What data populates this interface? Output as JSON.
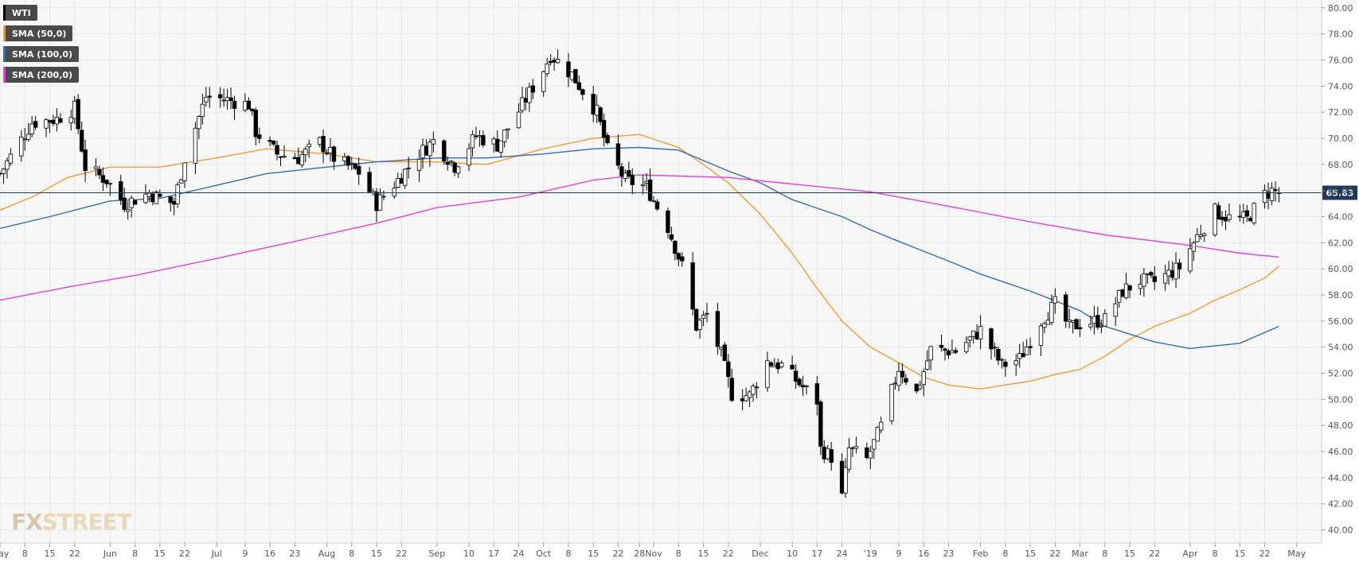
{
  "watermark": {
    "prefix": "FX",
    "suffix": "STREET"
  },
  "colors": {
    "sma50": "#f29a2e",
    "sma100": "#2f6db5",
    "sma200": "#e040e0",
    "candle_up": "#ffffff",
    "candle_down": "#000000",
    "wick": "#000000",
    "grid": "#e6e6e6",
    "current_line": "#1c3a5e"
  },
  "chart_data": {
    "type": "candlestick",
    "title": "",
    "xlabel": "",
    "ylabel": "",
    "ylim": [
      39,
      80.6
    ],
    "y_ticks": [
      "40.00",
      "42.00",
      "44.00",
      "46.00",
      "48.00",
      "50.00",
      "52.00",
      "54.00",
      "56.00",
      "58.00",
      "60.00",
      "62.00",
      "64.00",
      "66.00",
      "68.00",
      "70.00",
      "72.00",
      "74.00",
      "76.00",
      "78.00",
      "80.00"
    ],
    "x_range": [
      "2018-05-01",
      "2019-05-08"
    ],
    "x_ticks": [
      {
        "date": "2018-05-01",
        "label": "May"
      },
      {
        "date": "2018-05-08",
        "label": "8"
      },
      {
        "date": "2018-05-15",
        "label": "15"
      },
      {
        "date": "2018-05-22",
        "label": "22"
      },
      {
        "date": "2018-06-01",
        "label": "Jun"
      },
      {
        "date": "2018-06-08",
        "label": "8"
      },
      {
        "date": "2018-06-15",
        "label": "15"
      },
      {
        "date": "2018-06-22",
        "label": "22"
      },
      {
        "date": "2018-07-01",
        "label": "Jul"
      },
      {
        "date": "2018-07-09",
        "label": "9"
      },
      {
        "date": "2018-07-16",
        "label": "16"
      },
      {
        "date": "2018-07-23",
        "label": "23"
      },
      {
        "date": "2018-08-01",
        "label": "Aug"
      },
      {
        "date": "2018-08-08",
        "label": "8"
      },
      {
        "date": "2018-08-15",
        "label": "15"
      },
      {
        "date": "2018-08-22",
        "label": "22"
      },
      {
        "date": "2018-09-01",
        "label": "Sep"
      },
      {
        "date": "2018-09-10",
        "label": "10"
      },
      {
        "date": "2018-09-17",
        "label": "17"
      },
      {
        "date": "2018-09-24",
        "label": "24"
      },
      {
        "date": "2018-10-01",
        "label": "Oct"
      },
      {
        "date": "2018-10-08",
        "label": "8"
      },
      {
        "date": "2018-10-15",
        "label": "15"
      },
      {
        "date": "2018-10-22",
        "label": "22"
      },
      {
        "date": "2018-10-28",
        "label": "28"
      },
      {
        "date": "2018-11-01",
        "label": "Nov"
      },
      {
        "date": "2018-11-08",
        "label": "8"
      },
      {
        "date": "2018-11-15",
        "label": "15"
      },
      {
        "date": "2018-11-22",
        "label": "22"
      },
      {
        "date": "2018-12-01",
        "label": "Dec"
      },
      {
        "date": "2018-12-10",
        "label": "10"
      },
      {
        "date": "2018-12-17",
        "label": "17"
      },
      {
        "date": "2018-12-24",
        "label": "24"
      },
      {
        "date": "2019-01-01",
        "label": "'19"
      },
      {
        "date": "2019-01-09",
        "label": "9"
      },
      {
        "date": "2019-01-16",
        "label": "16"
      },
      {
        "date": "2019-01-23",
        "label": "23"
      },
      {
        "date": "2019-02-01",
        "label": "Feb"
      },
      {
        "date": "2019-02-08",
        "label": "8"
      },
      {
        "date": "2019-02-15",
        "label": "15"
      },
      {
        "date": "2019-02-22",
        "label": "22"
      },
      {
        "date": "2019-03-01",
        "label": "Mar"
      },
      {
        "date": "2019-03-08",
        "label": "8"
      },
      {
        "date": "2019-03-15",
        "label": "15"
      },
      {
        "date": "2019-03-22",
        "label": "22"
      },
      {
        "date": "2019-04-01",
        "label": "Apr"
      },
      {
        "date": "2019-04-08",
        "label": "8"
      },
      {
        "date": "2019-04-15",
        "label": "15"
      },
      {
        "date": "2019-04-22",
        "label": "22"
      },
      {
        "date": "2019-05-01",
        "label": "May"
      }
    ],
    "current_price": {
      "value": 65.83,
      "label": "65.83"
    },
    "legend": [
      {
        "label": "WTI",
        "color": "#000000"
      },
      {
        "label": "SMA (50,0)",
        "color": "#f29a2e"
      },
      {
        "label": "SMA (100,0)",
        "color": "#2f6db5"
      },
      {
        "label": "SMA (200,0)",
        "color": "#e040e0"
      }
    ],
    "price_path": [
      [
        "2018-05-01",
        67.3
      ],
      [
        "2018-05-10",
        71.2
      ],
      [
        "2018-05-17",
        71.5
      ],
      [
        "2018-05-22",
        72.3
      ],
      [
        "2018-05-25",
        67.8
      ],
      [
        "2018-05-31",
        66.8
      ],
      [
        "2018-06-05",
        65.0
      ],
      [
        "2018-06-12",
        65.8
      ],
      [
        "2018-06-15",
        65.4
      ],
      [
        "2018-06-19",
        65.0
      ],
      [
        "2018-06-22",
        68.5
      ],
      [
        "2018-06-28",
        73.2
      ],
      [
        "2018-07-03",
        73.0
      ],
      [
        "2018-07-10",
        72.6
      ],
      [
        "2018-07-12",
        70.5
      ],
      [
        "2018-07-18",
        68.8
      ],
      [
        "2018-07-24",
        68.5
      ],
      [
        "2018-07-30",
        69.7
      ],
      [
        "2018-08-03",
        68.5
      ],
      [
        "2018-08-10",
        67.4
      ],
      [
        "2018-08-15",
        65.0
      ],
      [
        "2018-08-20",
        66.5
      ],
      [
        "2018-08-27",
        68.8
      ],
      [
        "2018-08-31",
        69.8
      ],
      [
        "2018-09-06",
        67.9
      ],
      [
        "2018-09-12",
        70.2
      ],
      [
        "2018-09-18",
        69.5
      ],
      [
        "2018-09-24",
        72.1
      ],
      [
        "2018-10-01",
        75.3
      ],
      [
        "2018-10-03",
        76.4
      ],
      [
        "2018-10-09",
        74.9
      ],
      [
        "2018-10-16",
        72.0
      ],
      [
        "2018-10-19",
        69.1
      ],
      [
        "2018-10-24",
        66.8
      ],
      [
        "2018-10-30",
        66.3
      ],
      [
        "2018-11-05",
        63.2
      ],
      [
        "2018-11-09",
        60.2
      ],
      [
        "2018-11-13",
        55.6
      ],
      [
        "2018-11-16",
        56.5
      ],
      [
        "2018-11-20",
        53.4
      ],
      [
        "2018-11-23",
        50.4
      ],
      [
        "2018-11-28",
        50.3
      ],
      [
        "2018-12-03",
        52.9
      ],
      [
        "2018-12-07",
        52.6
      ],
      [
        "2018-12-12",
        51.2
      ],
      [
        "2018-12-17",
        49.9
      ],
      [
        "2018-12-18",
        46.2
      ],
      [
        "2018-12-21",
        45.6
      ],
      [
        "2018-12-24",
        42.5
      ],
      [
        "2018-12-26",
        46.2
      ],
      [
        "2018-12-31",
        45.4
      ],
      [
        "2019-01-04",
        47.9
      ],
      [
        "2019-01-09",
        52.4
      ],
      [
        "2019-01-14",
        50.5
      ],
      [
        "2019-01-18",
        53.8
      ],
      [
        "2019-01-25",
        53.7
      ],
      [
        "2019-02-01",
        55.3
      ],
      [
        "2019-02-07",
        52.6
      ],
      [
        "2019-02-12",
        53.1
      ],
      [
        "2019-02-18",
        56.0
      ],
      [
        "2019-02-22",
        57.3
      ],
      [
        "2019-02-26",
        55.5
      ],
      [
        "2019-03-01",
        55.8
      ],
      [
        "2019-03-08",
        56.1
      ],
      [
        "2019-03-13",
        58.3
      ],
      [
        "2019-03-18",
        59.1
      ],
      [
        "2019-03-22",
        59.0
      ],
      [
        "2019-03-29",
        60.1
      ],
      [
        "2019-04-03",
        62.5
      ],
      [
        "2019-04-08",
        64.4
      ],
      [
        "2019-04-12",
        63.9
      ],
      [
        "2019-04-17",
        63.8
      ],
      [
        "2019-04-22",
        65.7
      ],
      [
        "2019-04-24",
        66.0
      ],
      [
        "2019-04-26",
        65.8
      ]
    ],
    "sma": [
      {
        "label": "SMA (50,0)",
        "points": [
          [
            "2018-05-01",
            64.5
          ],
          [
            "2018-05-10",
            65.5
          ],
          [
            "2018-05-20",
            67.0
          ],
          [
            "2018-06-01",
            67.8
          ],
          [
            "2018-06-15",
            67.8
          ],
          [
            "2018-07-01",
            68.5
          ],
          [
            "2018-07-15",
            69.2
          ],
          [
            "2018-08-01",
            68.8
          ],
          [
            "2018-08-15",
            68.2
          ],
          [
            "2018-09-01",
            68.2
          ],
          [
            "2018-09-15",
            68.0
          ],
          [
            "2018-10-01",
            69.2
          ],
          [
            "2018-10-15",
            70.0
          ],
          [
            "2018-10-28",
            70.3
          ],
          [
            "2018-11-08",
            69.3
          ],
          [
            "2018-11-15",
            68.0
          ],
          [
            "2018-11-22",
            66.6
          ],
          [
            "2018-12-01",
            64.2
          ],
          [
            "2018-12-10",
            61.2
          ],
          [
            "2018-12-17",
            58.5
          ],
          [
            "2018-12-24",
            56.0
          ],
          [
            "2019-01-01",
            54.0
          ],
          [
            "2019-01-09",
            52.8
          ],
          [
            "2019-01-16",
            51.7
          ],
          [
            "2019-01-23",
            51.1
          ],
          [
            "2019-02-01",
            50.8
          ],
          [
            "2019-02-08",
            51.1
          ],
          [
            "2019-02-15",
            51.4
          ],
          [
            "2019-02-22",
            51.9
          ],
          [
            "2019-03-01",
            52.3
          ],
          [
            "2019-03-08",
            53.3
          ],
          [
            "2019-03-15",
            54.6
          ],
          [
            "2019-03-22",
            55.6
          ],
          [
            "2019-04-01",
            56.6
          ],
          [
            "2019-04-08",
            57.6
          ],
          [
            "2019-04-15",
            58.4
          ],
          [
            "2019-04-22",
            59.3
          ],
          [
            "2019-04-26",
            60.2
          ]
        ]
      },
      {
        "label": "SMA (100,0)",
        "points": [
          [
            "2018-05-01",
            63.1
          ],
          [
            "2018-05-15",
            64.0
          ],
          [
            "2018-06-01",
            65.2
          ],
          [
            "2018-06-15",
            65.4
          ],
          [
            "2018-07-01",
            66.4
          ],
          [
            "2018-07-15",
            67.3
          ],
          [
            "2018-08-01",
            67.8
          ],
          [
            "2018-08-15",
            68.2
          ],
          [
            "2018-09-01",
            68.5
          ],
          [
            "2018-09-15",
            68.5
          ],
          [
            "2018-10-01",
            68.8
          ],
          [
            "2018-10-15",
            69.2
          ],
          [
            "2018-10-28",
            69.3
          ],
          [
            "2018-11-08",
            69.1
          ],
          [
            "2018-11-22",
            67.5
          ],
          [
            "2018-12-01",
            66.6
          ],
          [
            "2018-12-10",
            65.3
          ],
          [
            "2018-12-24",
            64.0
          ],
          [
            "2019-01-01",
            63.0
          ],
          [
            "2019-01-09",
            62.1
          ],
          [
            "2019-01-23",
            60.6
          ],
          [
            "2019-02-01",
            59.6
          ],
          [
            "2019-02-15",
            58.3
          ],
          [
            "2019-03-01",
            56.8
          ],
          [
            "2019-03-08",
            55.6
          ],
          [
            "2019-03-22",
            54.4
          ],
          [
            "2019-04-01",
            53.9
          ],
          [
            "2019-04-15",
            54.3
          ],
          [
            "2019-04-26",
            55.6
          ]
        ]
      },
      {
        "label": "SMA (200,0)",
        "points": [
          [
            "2018-05-01",
            57.6
          ],
          [
            "2018-05-20",
            58.6
          ],
          [
            "2018-06-08",
            59.5
          ],
          [
            "2018-07-01",
            60.8
          ],
          [
            "2018-07-23",
            62.1
          ],
          [
            "2018-08-15",
            63.5
          ],
          [
            "2018-09-01",
            64.7
          ],
          [
            "2018-09-24",
            65.5
          ],
          [
            "2018-10-15",
            66.8
          ],
          [
            "2018-10-28",
            67.2
          ],
          [
            "2018-11-22",
            67.0
          ],
          [
            "2018-12-10",
            66.5
          ],
          [
            "2019-01-01",
            65.9
          ],
          [
            "2019-01-23",
            64.8
          ],
          [
            "2019-02-15",
            63.6
          ],
          [
            "2019-03-08",
            62.6
          ],
          [
            "2019-04-01",
            61.8
          ],
          [
            "2019-04-15",
            61.2
          ],
          [
            "2019-04-26",
            60.9
          ]
        ]
      }
    ]
  }
}
